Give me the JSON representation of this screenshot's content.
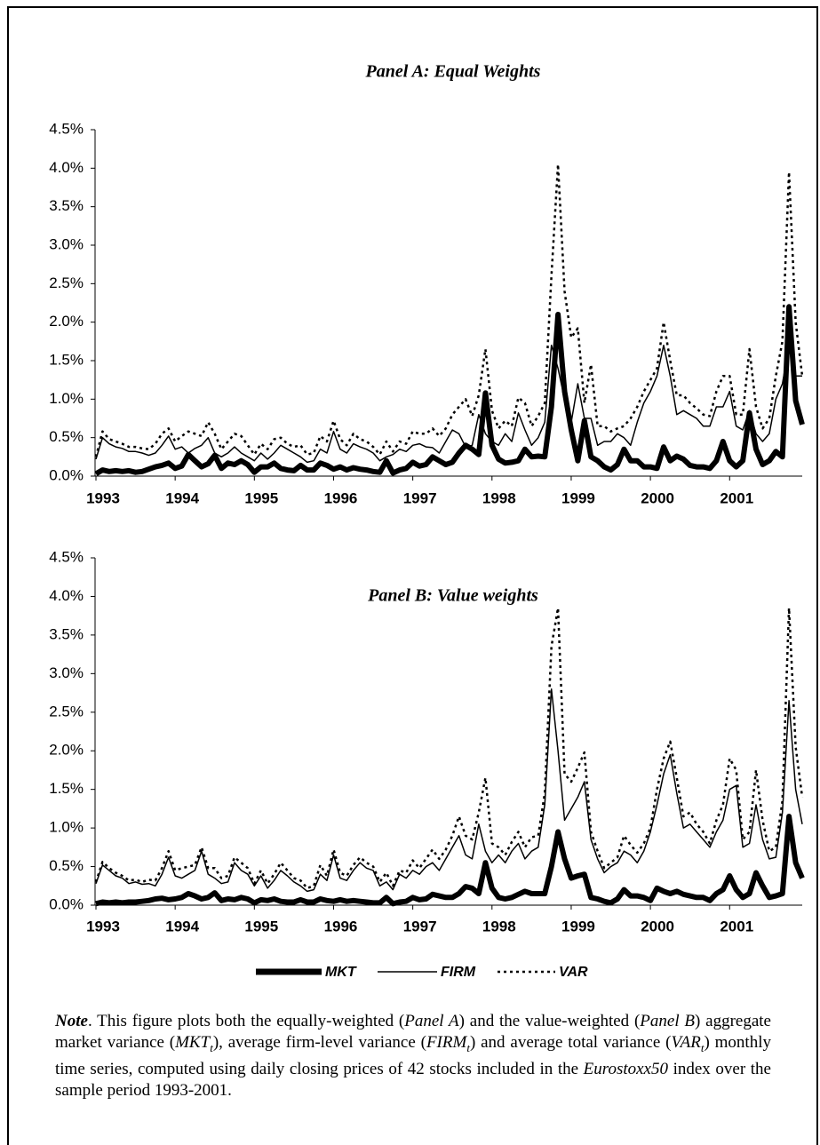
{
  "chart_data": [
    {
      "type": "line",
      "title": "Panel A: Equal Weights",
      "categories": [
        "1993",
        null,
        null,
        null,
        null,
        null,
        null,
        null,
        null,
        null,
        null,
        null,
        "1994",
        null,
        null,
        null,
        null,
        null,
        null,
        null,
        null,
        null,
        null,
        null,
        "1995",
        null,
        null,
        null,
        null,
        null,
        null,
        null,
        null,
        null,
        null,
        null,
        "1996",
        null,
        null,
        null,
        null,
        null,
        null,
        null,
        null,
        null,
        null,
        null,
        "1997",
        null,
        null,
        null,
        null,
        null,
        null,
        null,
        null,
        null,
        null,
        null,
        "1998",
        null,
        null,
        null,
        null,
        null,
        null,
        null,
        null,
        null,
        null,
        null,
        "1999",
        null,
        null,
        null,
        null,
        null,
        null,
        null,
        null,
        null,
        null,
        null,
        "2000",
        null,
        null,
        null,
        null,
        null,
        null,
        null,
        null,
        null,
        null,
        null,
        "2001",
        null,
        null,
        null,
        null,
        null,
        null,
        null,
        null,
        null,
        null,
        null
      ],
      "ylim": [
        0,
        4.5
      ],
      "yticks": [
        {
          "value": 0,
          "label": "0.0%"
        },
        {
          "value": 0.5,
          "label": "0.5%"
        },
        {
          "value": 1,
          "label": "1.0%"
        },
        {
          "value": 1.5,
          "label": "1.5%"
        },
        {
          "value": 2,
          "label": "2.0%"
        },
        {
          "value": 2.5,
          "label": "2.5%"
        },
        {
          "value": 3,
          "label": "3.0%"
        },
        {
          "value": 3.5,
          "label": "3.5%"
        },
        {
          "value": 4,
          "label": "4.0%"
        },
        {
          "value": 4.5,
          "label": "4.5%"
        }
      ],
      "series": [
        {
          "name": "MKT",
          "color": "#000000",
          "style": "thick",
          "values": [
            0.03,
            0.08,
            0.06,
            0.07,
            0.06,
            0.07,
            0.05,
            0.06,
            0.09,
            0.12,
            0.14,
            0.17,
            0.1,
            0.13,
            0.28,
            0.2,
            0.12,
            0.16,
            0.27,
            0.1,
            0.17,
            0.15,
            0.2,
            0.15,
            0.05,
            0.12,
            0.12,
            0.17,
            0.1,
            0.08,
            0.07,
            0.14,
            0.08,
            0.08,
            0.17,
            0.14,
            0.09,
            0.12,
            0.08,
            0.11,
            0.09,
            0.08,
            0.06,
            0.05,
            0.2,
            0.04,
            0.08,
            0.1,
            0.18,
            0.13,
            0.15,
            0.25,
            0.2,
            0.15,
            0.18,
            0.3,
            0.4,
            0.35,
            0.28,
            1.08,
            0.4,
            0.22,
            0.17,
            0.18,
            0.2,
            0.35,
            0.25,
            0.26,
            0.25,
            0.9,
            2.1,
            1.1,
            0.6,
            0.2,
            0.72,
            0.25,
            0.2,
            0.12,
            0.08,
            0.15,
            0.35,
            0.2,
            0.2,
            0.12,
            0.12,
            0.1,
            0.38,
            0.2,
            0.26,
            0.22,
            0.14,
            0.12,
            0.12,
            0.1,
            0.2,
            0.45,
            0.2,
            0.12,
            0.2,
            0.82,
            0.35,
            0.15,
            0.2,
            0.32,
            0.25,
            2.2,
            0.98,
            0.67
          ]
        },
        {
          "name": "FIRM",
          "color": "#000000",
          "style": "solid",
          "values": [
            0.22,
            0.5,
            0.42,
            0.38,
            0.36,
            0.32,
            0.32,
            0.3,
            0.27,
            0.3,
            0.4,
            0.52,
            0.35,
            0.38,
            0.3,
            0.36,
            0.4,
            0.5,
            0.3,
            0.25,
            0.3,
            0.38,
            0.3,
            0.25,
            0.2,
            0.3,
            0.22,
            0.3,
            0.4,
            0.35,
            0.3,
            0.25,
            0.18,
            0.2,
            0.35,
            0.3,
            0.58,
            0.35,
            0.3,
            0.42,
            0.38,
            0.35,
            0.3,
            0.2,
            0.25,
            0.28,
            0.35,
            0.32,
            0.4,
            0.42,
            0.38,
            0.37,
            0.3,
            0.45,
            0.6,
            0.55,
            0.38,
            0.4,
            0.8,
            0.55,
            0.45,
            0.4,
            0.55,
            0.45,
            0.82,
            0.6,
            0.4,
            0.5,
            0.7,
            1.7,
            1.4,
            1.0,
            0.7,
            1.2,
            0.75,
            0.75,
            0.4,
            0.45,
            0.45,
            0.55,
            0.5,
            0.4,
            0.7,
            0.95,
            1.1,
            1.3,
            1.7,
            1.3,
            0.8,
            0.85,
            0.8,
            0.75,
            0.65,
            0.65,
            0.9,
            0.9,
            1.1,
            0.65,
            0.6,
            0.85,
            0.55,
            0.45,
            0.55,
            1.0,
            1.2,
            1.7,
            1.3,
            1.3
          ]
        },
        {
          "name": "VAR",
          "color": "#000000",
          "style": "dotted",
          "values": [
            0.25,
            0.58,
            0.48,
            0.45,
            0.42,
            0.38,
            0.38,
            0.36,
            0.35,
            0.42,
            0.55,
            0.62,
            0.45,
            0.52,
            0.58,
            0.55,
            0.52,
            0.7,
            0.55,
            0.35,
            0.45,
            0.55,
            0.52,
            0.4,
            0.28,
            0.42,
            0.35,
            0.48,
            0.5,
            0.42,
            0.38,
            0.4,
            0.28,
            0.3,
            0.52,
            0.45,
            0.72,
            0.48,
            0.4,
            0.55,
            0.48,
            0.45,
            0.38,
            0.28,
            0.45,
            0.32,
            0.45,
            0.42,
            0.58,
            0.55,
            0.55,
            0.62,
            0.52,
            0.62,
            0.8,
            0.9,
            1.0,
            0.78,
            1.05,
            1.65,
            0.85,
            0.62,
            0.72,
            0.65,
            1.02,
            0.95,
            0.65,
            0.78,
            0.95,
            2.6,
            4.05,
            2.4,
            1.8,
            1.92,
            0.95,
            1.45,
            0.65,
            0.65,
            0.58,
            0.62,
            0.65,
            0.75,
            0.9,
            1.1,
            1.25,
            1.4,
            2.0,
            1.5,
            1.05,
            1.05,
            0.95,
            0.88,
            0.8,
            0.78,
            1.1,
            1.3,
            1.3,
            0.8,
            0.8,
            1.65,
            0.9,
            0.62,
            0.75,
            1.3,
            1.75,
            3.95,
            2.0,
            1.3
          ]
        }
      ]
    },
    {
      "type": "line",
      "title": "Panel B: Value weights",
      "categories": [
        "1993",
        null,
        null,
        null,
        null,
        null,
        null,
        null,
        null,
        null,
        null,
        null,
        "1994",
        null,
        null,
        null,
        null,
        null,
        null,
        null,
        null,
        null,
        null,
        null,
        "1995",
        null,
        null,
        null,
        null,
        null,
        null,
        null,
        null,
        null,
        null,
        null,
        "1996",
        null,
        null,
        null,
        null,
        null,
        null,
        null,
        null,
        null,
        null,
        null,
        "1997",
        null,
        null,
        null,
        null,
        null,
        null,
        null,
        null,
        null,
        null,
        null,
        "1998",
        null,
        null,
        null,
        null,
        null,
        null,
        null,
        null,
        null,
        null,
        null,
        "1999",
        null,
        null,
        null,
        null,
        null,
        null,
        null,
        null,
        null,
        null,
        null,
        "2000",
        null,
        null,
        null,
        null,
        null,
        null,
        null,
        null,
        null,
        null,
        null,
        "2001",
        null,
        null,
        null,
        null,
        null,
        null,
        null,
        null,
        null,
        null,
        null
      ],
      "ylim": [
        0,
        4.5
      ],
      "yticks": [
        {
          "value": 0,
          "label": "0.0%"
        },
        {
          "value": 0.5,
          "label": "0.5%"
        },
        {
          "value": 1,
          "label": "1.0%"
        },
        {
          "value": 1.5,
          "label": "1.5%"
        },
        {
          "value": 2,
          "label": "2.0%"
        },
        {
          "value": 2.5,
          "label": "2.5%"
        },
        {
          "value": 3,
          "label": "3.0%"
        },
        {
          "value": 3.5,
          "label": "3.5%"
        },
        {
          "value": 4,
          "label": "4.0%"
        },
        {
          "value": 4.5,
          "label": "4.5%"
        }
      ],
      "series": [
        {
          "color": "#000000",
          "style": "thick",
          "values": [
            0.02,
            0.04,
            0.03,
            0.04,
            0.03,
            0.04,
            0.04,
            0.05,
            0.06,
            0.08,
            0.09,
            0.07,
            0.08,
            0.1,
            0.15,
            0.12,
            0.08,
            0.1,
            0.16,
            0.06,
            0.08,
            0.07,
            0.1,
            0.08,
            0.03,
            0.07,
            0.06,
            0.08,
            0.05,
            0.04,
            0.04,
            0.07,
            0.04,
            0.04,
            0.08,
            0.06,
            0.05,
            0.07,
            0.05,
            0.06,
            0.05,
            0.04,
            0.03,
            0.03,
            0.1,
            0.02,
            0.04,
            0.05,
            0.1,
            0.07,
            0.08,
            0.14,
            0.12,
            0.1,
            0.1,
            0.15,
            0.24,
            0.22,
            0.15,
            0.55,
            0.22,
            0.1,
            0.08,
            0.1,
            0.14,
            0.18,
            0.15,
            0.15,
            0.15,
            0.5,
            0.95,
            0.6,
            0.35,
            0.38,
            0.4,
            0.1,
            0.08,
            0.05,
            0.03,
            0.08,
            0.2,
            0.12,
            0.12,
            0.1,
            0.06,
            0.22,
            0.18,
            0.15,
            0.18,
            0.14,
            0.12,
            0.1,
            0.1,
            0.06,
            0.15,
            0.2,
            0.38,
            0.2,
            0.1,
            0.15,
            0.42,
            0.25,
            0.1,
            0.12,
            0.15,
            1.15,
            0.55,
            0.35
          ]
        },
        {
          "color": "#000000",
          "style": "solid",
          "values": [
            0.28,
            0.52,
            0.45,
            0.38,
            0.35,
            0.28,
            0.3,
            0.27,
            0.28,
            0.25,
            0.4,
            0.62,
            0.38,
            0.35,
            0.4,
            0.45,
            0.7,
            0.4,
            0.35,
            0.28,
            0.3,
            0.55,
            0.45,
            0.4,
            0.25,
            0.38,
            0.22,
            0.32,
            0.45,
            0.38,
            0.3,
            0.25,
            0.18,
            0.2,
            0.4,
            0.32,
            0.65,
            0.35,
            0.32,
            0.45,
            0.55,
            0.48,
            0.45,
            0.25,
            0.3,
            0.2,
            0.4,
            0.35,
            0.45,
            0.4,
            0.5,
            0.55,
            0.45,
            0.6,
            0.75,
            0.9,
            0.65,
            0.6,
            1.05,
            0.7,
            0.55,
            0.65,
            0.55,
            0.7,
            0.8,
            0.6,
            0.7,
            0.75,
            1.3,
            2.8,
            2.0,
            1.1,
            1.25,
            1.4,
            1.6,
            0.85,
            0.6,
            0.42,
            0.5,
            0.55,
            0.7,
            0.65,
            0.55,
            0.7,
            0.95,
            1.3,
            1.7,
            1.95,
            1.45,
            1.0,
            1.05,
            0.95,
            0.85,
            0.75,
            0.95,
            1.1,
            1.5,
            1.55,
            0.75,
            0.8,
            1.3,
            0.85,
            0.6,
            0.62,
            1.2,
            2.65,
            1.5,
            1.05
          ]
        },
        {
          "color": "#000000",
          "style": "dotted",
          "values": [
            0.3,
            0.56,
            0.48,
            0.42,
            0.38,
            0.32,
            0.33,
            0.3,
            0.33,
            0.32,
            0.48,
            0.7,
            0.45,
            0.48,
            0.5,
            0.52,
            0.75,
            0.48,
            0.48,
            0.35,
            0.38,
            0.62,
            0.55,
            0.48,
            0.28,
            0.45,
            0.28,
            0.4,
            0.55,
            0.45,
            0.35,
            0.32,
            0.22,
            0.25,
            0.52,
            0.38,
            0.72,
            0.42,
            0.38,
            0.52,
            0.62,
            0.55,
            0.5,
            0.3,
            0.42,
            0.25,
            0.45,
            0.42,
            0.58,
            0.48,
            0.6,
            0.72,
            0.6,
            0.72,
            0.9,
            1.15,
            0.9,
            0.85,
            1.2,
            1.65,
            0.8,
            0.75,
            0.65,
            0.82,
            0.95,
            0.75,
            0.88,
            0.9,
            1.45,
            3.35,
            3.85,
            1.7,
            1.6,
            1.78,
            1.98,
            0.95,
            0.7,
            0.48,
            0.55,
            0.62,
            0.9,
            0.78,
            0.68,
            0.8,
            1.0,
            1.5,
            1.9,
            2.12,
            1.65,
            1.15,
            1.2,
            1.05,
            0.95,
            0.8,
            1.1,
            1.3,
            1.9,
            1.75,
            0.85,
            0.95,
            1.75,
            1.1,
            0.7,
            0.75,
            1.35,
            3.85,
            2.05,
            1.4
          ]
        }
      ]
    }
  ],
  "note": [
    "Note",
    ". This figure plots both the equally-weighted (",
    "Panel A",
    ") and the value-weighted (",
    "Panel B",
    ") aggregate market variance (",
    "MKT",
    "t",
    "), average firm-level variance (",
    "FIRM",
    "t",
    ") and average total variance (",
    "VAR",
    "t",
    ") monthly time series, computed using daily closing prices of 42 stocks included in the ",
    "Eurostoxx50",
    " index over the sample period 1993-2001."
  ]
}
